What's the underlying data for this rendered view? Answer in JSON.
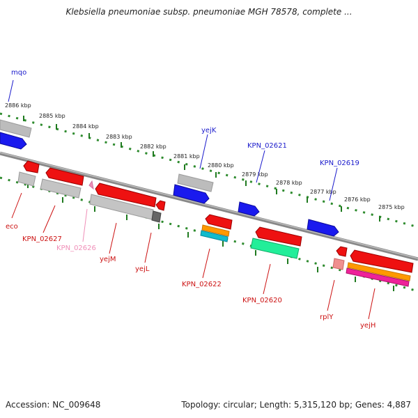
{
  "title": "Klebsiella pneumoniae subsp. pneumoniae MGH 78578, complete ...",
  "footer": {
    "accession": "Accession: NC_009648",
    "summary": "Topology: circular; Length: 5,315,120 bp; Genes: 4,887"
  },
  "scale": {
    "ticks": [
      "2886 kbp",
      "2885 kbp",
      "2884 kbp",
      "2883 kbp",
      "2882 kbp",
      "2881 kbp",
      "2880 kbp",
      "2879 kbp",
      "2878 kbp",
      "2877 kbp",
      "2876 kbp",
      "2875 kbp"
    ]
  },
  "colors": {
    "forward_gene": "#1a1aee",
    "reverse_gene": "#ee1111",
    "grey_feature": "#b8b8b8",
    "backbone": "#888888",
    "dotted_track": "#2e8b2e",
    "label_blue": "#1a1acc",
    "label_red": "#cc1111",
    "label_pink": "#f08fb8",
    "orange": "#ff9900",
    "teal": "#11bbcc",
    "green": "#22ee99",
    "magenta": "#ee2299"
  },
  "labels": {
    "mqo": "mqo",
    "yejK": "yejK",
    "KPN_02621": "KPN_02621",
    "KPN_02619": "KPN_02619",
    "eco": "eco",
    "KPN_02627": "KPN_02627",
    "KPN_02626": "KPN_02626",
    "yejM": "yejM",
    "yejL": "yejL",
    "KPN_02622": "KPN_02622",
    "KPN_02620": "KPN_02620",
    "rplY": "rplY",
    "yejH": "yejH"
  }
}
